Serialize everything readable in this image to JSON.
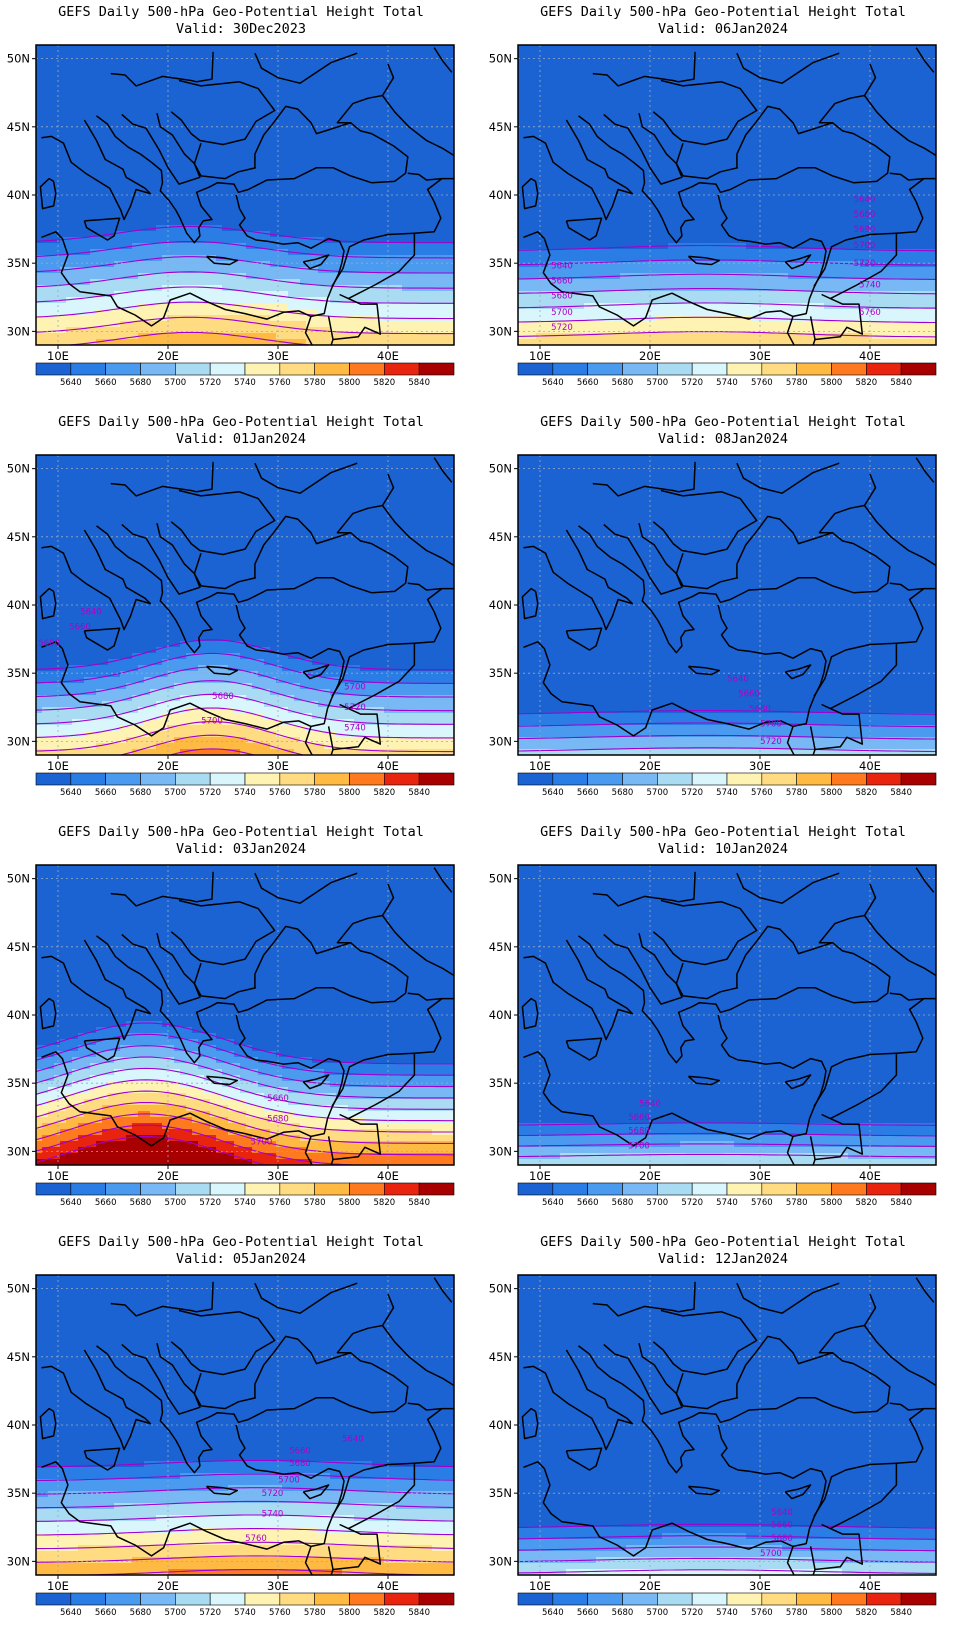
{
  "colors": {
    "levels": [
      {
        "lo": null,
        "hi": 5640,
        "color": "#1b63d2"
      },
      {
        "lo": 5640,
        "hi": 5660,
        "color": "#2b7de6"
      },
      {
        "lo": 5660,
        "hi": 5680,
        "color": "#4a9af0"
      },
      {
        "lo": 5680,
        "hi": 5700,
        "color": "#78b8f4"
      },
      {
        "lo": 5700,
        "hi": 5720,
        "color": "#a9dcf3"
      },
      {
        "lo": 5720,
        "hi": 5740,
        "color": "#d8f6fb"
      },
      {
        "lo": 5740,
        "hi": 5760,
        "color": "#fff3b3"
      },
      {
        "lo": 5760,
        "hi": 5780,
        "color": "#ffdc82"
      },
      {
        "lo": 5780,
        "hi": 5800,
        "color": "#ffba43"
      },
      {
        "lo": 5800,
        "hi": 5820,
        "color": "#ff7a1e"
      },
      {
        "lo": 5820,
        "hi": 5840,
        "color": "#e8230e"
      },
      {
        "lo": 5840,
        "hi": null,
        "color": "#a80000"
      }
    ],
    "contour": "#a000d0",
    "contour_label": "#b000c8",
    "coast": "#000000"
  },
  "map": {
    "lon_range": [
      8,
      46
    ],
    "lat_range": [
      29,
      51
    ],
    "lon_ticks": [
      {
        "value": 10,
        "label": "10E"
      },
      {
        "value": 20,
        "label": "20E"
      },
      {
        "value": 30,
        "label": "30E"
      },
      {
        "value": 40,
        "label": "40E"
      }
    ],
    "lat_ticks": [
      {
        "value": 30,
        "label": "30N"
      },
      {
        "value": 35,
        "label": "35N"
      },
      {
        "value": 40,
        "label": "40N"
      },
      {
        "value": 45,
        "label": "45N"
      },
      {
        "value": 50,
        "label": "50N"
      }
    ],
    "colorbar_labels": [
      "5640",
      "5660",
      "5680",
      "5700",
      "5720",
      "5740",
      "5760",
      "5780",
      "5800",
      "5820",
      "5840"
    ]
  },
  "panels": [
    {
      "title": "GEFS Daily 500-hPa Geo-Potential Height Total",
      "valid": "Valid: 30Dec2023",
      "height_field": {
        "base": 5748,
        "north_gradient": 18,
        "south_peak_lat": 30.5,
        "wave_amp": 1.2,
        "wave_lon": 22,
        "wave_width": 9,
        "extra_ridge": 10
      },
      "contour_labels": []
    },
    {
      "title": "GEFS Daily 500-hPa Geo-Potential Height Total",
      "valid": "Valid: 06Jan2024",
      "height_field": {
        "base": 5752,
        "north_gradient": 19,
        "south_peak_lat": 30.0,
        "wave_amp": 0.4,
        "wave_lon": 25,
        "wave_width": 12,
        "extra_ridge": 0
      },
      "contour_labels": [
        {
          "text": "5640",
          "lon": 12,
          "lat": 34.6
        },
        {
          "text": "5660",
          "lon": 12,
          "lat": 33.5
        },
        {
          "text": "5680",
          "lon": 12,
          "lat": 32.4
        },
        {
          "text": "5700",
          "lon": 12,
          "lat": 31.2
        },
        {
          "text": "5720",
          "lon": 12,
          "lat": 30.1
        },
        {
          "text": "5640",
          "lon": 39.5,
          "lat": 39.5
        },
        {
          "text": "5660",
          "lon": 39.5,
          "lat": 38.4
        },
        {
          "text": "5680",
          "lon": 39.5,
          "lat": 37.3
        },
        {
          "text": "5700",
          "lon": 39.5,
          "lat": 36.1
        },
        {
          "text": "5720",
          "lon": 39.5,
          "lat": 34.8
        },
        {
          "text": "5740",
          "lon": 40,
          "lat": 33.2
        },
        {
          "text": "5760",
          "lon": 40,
          "lat": 31.2
        }
      ]
    },
    {
      "title": "GEFS Daily 500-hPa Geo-Potential Height Total",
      "valid": "Valid: 01Jan2024",
      "height_field": {
        "base": 5745,
        "north_gradient": 20,
        "south_peak_lat": 30.0,
        "wave_amp": 2.2,
        "wave_lon": 24,
        "wave_width": 8,
        "extra_ridge": 0
      },
      "contour_labels": [
        {
          "text": "5640",
          "lon": 13,
          "lat": 39.3
        },
        {
          "text": "5660",
          "lon": 12,
          "lat": 38.2
        },
        {
          "text": "5680",
          "lon": 9.2,
          "lat": 37.0
        },
        {
          "text": "5680",
          "lon": 25,
          "lat": 33.1
        },
        {
          "text": "5700",
          "lon": 24,
          "lat": 31.3
        },
        {
          "text": "5700",
          "lon": 37,
          "lat": 33.8
        },
        {
          "text": "5720",
          "lon": 37,
          "lat": 32.3
        },
        {
          "text": "5740",
          "lon": 37,
          "lat": 30.8
        }
      ]
    },
    {
      "title": "GEFS Daily 500-hPa Geo-Potential Height Total",
      "valid": "Valid: 08Jan2024",
      "height_field": {
        "base": 5705,
        "north_gradient": 22,
        "south_peak_lat": 29.0,
        "wave_amp": 0.3,
        "wave_lon": 25,
        "wave_width": 14,
        "extra_ridge": 0
      },
      "contour_labels": [
        {
          "text": "5640",
          "lon": 28,
          "lat": 34.4
        },
        {
          "text": "5660",
          "lon": 29,
          "lat": 33.3
        },
        {
          "text": "5680",
          "lon": 30,
          "lat": 32.2
        },
        {
          "text": "5700",
          "lon": 31,
          "lat": 31.1
        },
        {
          "text": "5720",
          "lon": 31,
          "lat": 29.8
        }
      ]
    },
    {
      "title": "GEFS Daily 500-hPa Geo-Potential Height Total",
      "valid": "Valid: 03Jan2024",
      "height_field": {
        "base": 5770,
        "north_gradient": 24,
        "south_peak_lat": 31.0,
        "wave_amp": 3.0,
        "wave_lon": 18,
        "wave_width": 10,
        "extra_ridge": 0
      },
      "contour_labels": [
        {
          "text": "5660",
          "lon": 30,
          "lat": 33.7
        },
        {
          "text": "5680",
          "lon": 30,
          "lat": 32.2
        },
        {
          "text": "5700",
          "lon": 28.5,
          "lat": 30.5
        }
      ]
    },
    {
      "title": "GEFS Daily 500-hPa Geo-Potential Height Total",
      "valid": "Valid: 10Jan2024",
      "height_field": {
        "base": 5715,
        "north_gradient": 26,
        "south_peak_lat": 29.0,
        "wave_amp": 0.2,
        "wave_lon": 25,
        "wave_width": 14,
        "extra_ridge": 0
      },
      "contour_labels": [
        {
          "text": "5640",
          "lon": 20,
          "lat": 33.3
        },
        {
          "text": "5660",
          "lon": 19,
          "lat": 32.3
        },
        {
          "text": "5680",
          "lon": 19,
          "lat": 31.3
        },
        {
          "text": "5700",
          "lon": 19,
          "lat": 30.2
        }
      ]
    },
    {
      "title": "GEFS Daily 500-hPa Geo-Potential Height Total",
      "valid": "Valid: 05Jan2024",
      "height_field": {
        "base": 5778,
        "north_gradient": 20,
        "south_peak_lat": 30.0,
        "wave_amp": 0.5,
        "wave_lon": 28,
        "wave_width": 12,
        "extra_ridge": 0
      },
      "contour_labels": [
        {
          "text": "5640",
          "lon": 36.8,
          "lat": 38.8
        },
        {
          "text": "5660",
          "lon": 32,
          "lat": 37.9
        },
        {
          "text": "5680",
          "lon": 32,
          "lat": 37.0
        },
        {
          "text": "5700",
          "lon": 31,
          "lat": 35.8
        },
        {
          "text": "5720",
          "lon": 29.5,
          "lat": 34.8
        },
        {
          "text": "5740",
          "lon": 29.5,
          "lat": 33.3
        },
        {
          "text": "5760",
          "lon": 28,
          "lat": 31.5
        }
      ]
    },
    {
      "title": "GEFS Daily 500-hPa Geo-Potential Height Total",
      "valid": "Valid: 12Jan2024",
      "height_field": {
        "base": 5722,
        "north_gradient": 24,
        "south_peak_lat": 29.0,
        "wave_amp": 0.3,
        "wave_lon": 25,
        "wave_width": 14,
        "extra_ridge": 0
      },
      "contour_labels": [
        {
          "text": "5640",
          "lon": 32,
          "lat": 33.4
        },
        {
          "text": "5660",
          "lon": 32,
          "lat": 32.5
        },
        {
          "text": "5680",
          "lon": 32,
          "lat": 31.5
        },
        {
          "text": "5700",
          "lon": 31,
          "lat": 30.4
        }
      ]
    }
  ]
}
